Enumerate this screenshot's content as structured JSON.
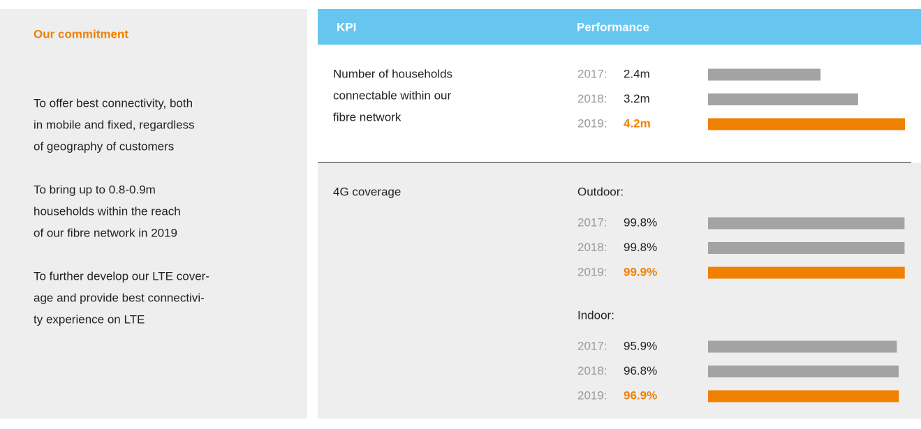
{
  "commitment": {
    "title": "Our commitment",
    "paragraphs": [
      [
        "To offer best connectivity, both",
        "in mobile and fixed, regardless",
        "of geography of customers"
      ],
      [
        "To bring up to 0.8-0.9m",
        "households within the reach",
        "of our fibre network in 2019"
      ],
      [
        "To further develop our LTE cover-",
        "age and provide best connectivi-",
        "ty experience on LTE"
      ]
    ]
  },
  "table": {
    "headers": [
      "KPI",
      "Performance"
    ],
    "rows": [
      {
        "kpi": [
          "Number of households",
          "connectable within our",
          "fibre network"
        ],
        "groups": [
          {
            "chart": {
              "type": "bar",
              "categories": [
                "2017:",
                "2018:",
                "2019:"
              ],
              "values": [
                2.4,
                3.2,
                4.2
              ],
              "value_labels": [
                "2.4m",
                "3.2m",
                "4.2m"
              ],
              "xlim": [
                0,
                4.2
              ],
              "color": "#a3a3a3",
              "highlight": 2,
              "highlight_color": "#f08000"
            }
          }
        ]
      },
      {
        "kpi": [
          "4G coverage"
        ],
        "groups": [
          {
            "label": "Outdoor:",
            "chart": {
              "type": "bar",
              "categories": [
                "2017:",
                "2018:",
                "2019:"
              ],
              "values": [
                99.8,
                99.8,
                99.9
              ],
              "value_labels": [
                "99.8%",
                "99.8%",
                "99.9%"
              ],
              "xlim": [
                0,
                100
              ],
              "color": "#a3a3a3",
              "highlight": 2,
              "highlight_color": "#f08000"
            }
          },
          {
            "label": "Indoor:",
            "chart": {
              "type": "bar",
              "categories": [
                "2017:",
                "2018:",
                "2019:"
              ],
              "values": [
                95.9,
                96.8,
                96.9
              ],
              "value_labels": [
                "95.9%",
                "96.8%",
                "96.9%"
              ],
              "xlim": [
                0,
                100
              ],
              "color": "#a3a3a3",
              "highlight": 2,
              "highlight_color": "#f08000"
            }
          }
        ]
      }
    ]
  }
}
